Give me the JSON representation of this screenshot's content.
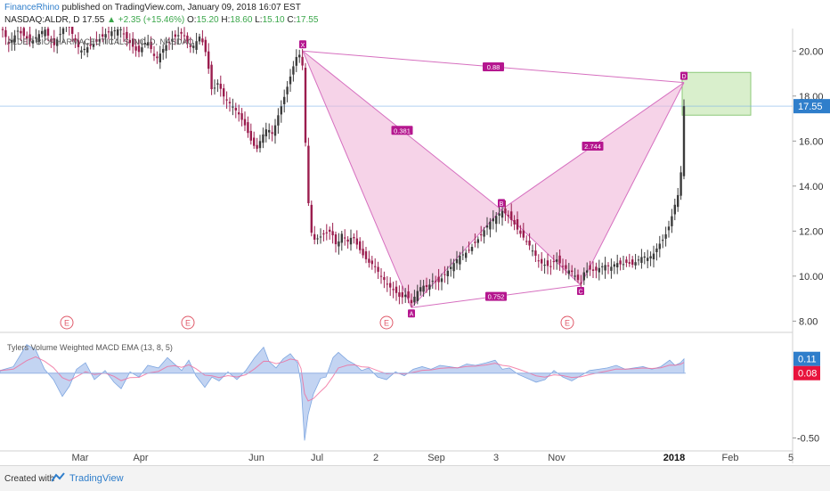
{
  "header": {
    "publisher": "FinanceRhino",
    "published_text": "published on TradingView.com, January 09, 2018 16:07 EST",
    "symbol_line": "NASDAQ:ALDR, D",
    "price": "17.55",
    "change_arrow": "▲",
    "change": "+2.35 (+15.46%)",
    "o_label": "O:",
    "o_value": "15.20",
    "h_label": "H:",
    "h_value": "18.60",
    "l_label": "L:",
    "l_value": "15.10",
    "c_label": "C:",
    "c_value": "17.55"
  },
  "footer": {
    "created_with": "Created with",
    "tradingview": "TradingView"
  },
  "colors": {
    "up_candle": "#3b3b3b",
    "down_candle": "#9b1d4e",
    "pattern_fill": "#f0b6d9",
    "pattern_line": "#d66fbf",
    "pattern_label_bg": "#b5178f",
    "target_box": "#c9e8b6",
    "macd_fill": "#b8cdf0",
    "signal_line": "#f06a9a",
    "price_badge": "#2f7ecb",
    "macd_badge": "#2f7ecb",
    "signal_badge": "#e8123c",
    "earnings": "#e05a6a"
  },
  "chart_data": {
    "type": "candlestick",
    "title": "ALDER BIOPHARMACEUTICALS INC, D, NASDAQ",
    "y_axis": {
      "min": 7.5,
      "max": 21,
      "ticks": [
        "20.00",
        "18.00",
        "16.00",
        "14.00",
        "12.00",
        "10.00",
        "8.00"
      ]
    },
    "x_ticks": [
      "Mar",
      "Apr",
      "Jun",
      "Jul",
      "2",
      "Sep",
      "3",
      "Nov",
      "2018",
      "Feb",
      "5"
    ],
    "last_price": "17.55",
    "price_path": [
      [
        0,
        21.2
      ],
      [
        10,
        20.3
      ],
      [
        20,
        20.9
      ],
      [
        35,
        20.4
      ],
      [
        50,
        21.0
      ],
      [
        60,
        20.2
      ],
      [
        75,
        21.3
      ],
      [
        90,
        20.0
      ],
      [
        105,
        20.3
      ],
      [
        120,
        20.8
      ],
      [
        135,
        21.0
      ],
      [
        145,
        20.4
      ],
      [
        155,
        19.9
      ],
      [
        165,
        20.5
      ],
      [
        175,
        19.6
      ],
      [
        185,
        20.2
      ],
      [
        195,
        20.6
      ],
      [
        205,
        20.8
      ],
      [
        215,
        20.1
      ],
      [
        225,
        20.7
      ],
      [
        232,
        19.8
      ],
      [
        238,
        18.2
      ],
      [
        245,
        18.6
      ],
      [
        252,
        17.9
      ],
      [
        260,
        17.6
      ],
      [
        268,
        17.2
      ],
      [
        275,
        16.7
      ],
      [
        282,
        16.0
      ],
      [
        288,
        15.6
      ],
      [
        294,
        16.2
      ],
      [
        300,
        16.6
      ],
      [
        306,
        16.3
      ],
      [
        312,
        17.1
      ],
      [
        318,
        17.8
      ],
      [
        324,
        18.6
      ],
      [
        330,
        19.4
      ],
      [
        335,
        20.0
      ],
      [
        340,
        19.3
      ],
      [
        344,
        14.8
      ],
      [
        348,
        12.2
      ],
      [
        352,
        11.6
      ],
      [
        358,
        11.7
      ],
      [
        365,
        11.9
      ],
      [
        372,
        12.0
      ],
      [
        378,
        11.3
      ],
      [
        384,
        11.9
      ],
      [
        390,
        11.5
      ],
      [
        396,
        11.8
      ],
      [
        402,
        11.3
      ],
      [
        408,
        10.9
      ],
      [
        414,
        10.6
      ],
      [
        420,
        10.5
      ],
      [
        426,
        10.1
      ],
      [
        432,
        9.8
      ],
      [
        438,
        9.5
      ],
      [
        444,
        9.3
      ],
      [
        450,
        9.0
      ],
      [
        456,
        9.2
      ],
      [
        462,
        8.8
      ],
      [
        468,
        9.3
      ],
      [
        474,
        9.6
      ],
      [
        480,
        9.5
      ],
      [
        486,
        9.8
      ],
      [
        492,
        9.7
      ],
      [
        498,
        10.0
      ],
      [
        504,
        10.3
      ],
      [
        510,
        10.6
      ],
      [
        516,
        10.9
      ],
      [
        522,
        11.0
      ],
      [
        528,
        11.2
      ],
      [
        534,
        11.5
      ],
      [
        540,
        11.8
      ],
      [
        546,
        12.2
      ],
      [
        552,
        12.5
      ],
      [
        558,
        12.7
      ],
      [
        564,
        12.9
      ],
      [
        570,
        12.7
      ],
      [
        576,
        12.4
      ],
      [
        582,
        12.0
      ],
      [
        588,
        11.7
      ],
      [
        594,
        11.4
      ],
      [
        600,
        11.0
      ],
      [
        606,
        10.6
      ],
      [
        612,
        10.5
      ],
      [
        618,
        10.4
      ],
      [
        624,
        10.8
      ],
      [
        630,
        10.5
      ],
      [
        636,
        10.3
      ],
      [
        642,
        10.2
      ],
      [
        648,
        9.9
      ],
      [
        652,
        9.6
      ],
      [
        656,
        10.2
      ],
      [
        662,
        10.3
      ],
      [
        668,
        10.2
      ],
      [
        674,
        10.4
      ],
      [
        680,
        10.5
      ],
      [
        686,
        10.4
      ],
      [
        692,
        10.6
      ],
      [
        698,
        10.5
      ],
      [
        704,
        10.6
      ],
      [
        710,
        10.5
      ],
      [
        716,
        10.7
      ],
      [
        722,
        10.9
      ],
      [
        728,
        10.8
      ],
      [
        734,
        11.0
      ],
      [
        740,
        11.4
      ],
      [
        746,
        11.7
      ],
      [
        752,
        12.3
      ],
      [
        758,
        13.2
      ],
      [
        762,
        13.7
      ],
      [
        766,
        15.1
      ],
      [
        768,
        17.55
      ]
    ],
    "harmonic_pattern": {
      "points": [
        {
          "name": "X",
          "price": 20.0
        },
        {
          "name": "A",
          "price": 8.6
        },
        {
          "name": "B",
          "price": 12.95
        },
        {
          "name": "C",
          "price": 9.6
        },
        {
          "name": "D",
          "price": 18.6
        }
      ],
      "ratios": {
        "XB": "0.381",
        "AC": "0.752",
        "BD": "2.744",
        "XD": "0.88"
      }
    },
    "earnings_markers": [
      "E",
      "E",
      "E",
      "E"
    ],
    "indicator": {
      "name": "Tylers Volume Weighted MACD EMA (13, 8, 5)",
      "y_ticks": [
        "-0.50"
      ],
      "macd_value": "0.11",
      "signal_value": "0.08",
      "macd_path": [
        [
          0,
          0.02
        ],
        [
          15,
          0.05
        ],
        [
          30,
          0.22
        ],
        [
          40,
          0.18
        ],
        [
          50,
          0.03
        ],
        [
          60,
          -0.05
        ],
        [
          70,
          -0.18
        ],
        [
          78,
          -0.1
        ],
        [
          86,
          0.03
        ],
        [
          96,
          0.08
        ],
        [
          106,
          -0.05
        ],
        [
          118,
          0.02
        ],
        [
          128,
          -0.07
        ],
        [
          136,
          -0.12
        ],
        [
          146,
          0.01
        ],
        [
          156,
          -0.03
        ],
        [
          166,
          0.06
        ],
        [
          178,
          0.04
        ],
        [
          188,
          0.12
        ],
        [
          196,
          0.07
        ],
        [
          204,
          0.02
        ],
        [
          212,
          0.1
        ],
        [
          220,
          -0.02
        ],
        [
          230,
          -0.11
        ],
        [
          238,
          -0.03
        ],
        [
          246,
          -0.06
        ],
        [
          256,
          0.01
        ],
        [
          266,
          -0.05
        ],
        [
          276,
          0.02
        ],
        [
          286,
          0.12
        ],
        [
          296,
          0.2
        ],
        [
          302,
          0.09
        ],
        [
          310,
          0.04
        ],
        [
          318,
          0.11
        ],
        [
          326,
          0.15
        ],
        [
          334,
          0.08
        ],
        [
          338,
          -0.08
        ],
        [
          342,
          -0.52
        ],
        [
          346,
          -0.32
        ],
        [
          352,
          -0.16
        ],
        [
          360,
          -0.04
        ],
        [
          366,
          -0.03
        ],
        [
          374,
          0.12
        ],
        [
          380,
          0.16
        ],
        [
          390,
          0.1
        ],
        [
          398,
          0.07
        ],
        [
          406,
          0.02
        ],
        [
          414,
          0.04
        ],
        [
          424,
          -0.03
        ],
        [
          434,
          -0.05
        ],
        [
          444,
          0.01
        ],
        [
          454,
          -0.02
        ],
        [
          464,
          0.03
        ],
        [
          474,
          0.05
        ],
        [
          484,
          0.03
        ],
        [
          494,
          0.06
        ],
        [
          504,
          0.05
        ],
        [
          514,
          0.04
        ],
        [
          524,
          0.07
        ],
        [
          534,
          0.06
        ],
        [
          546,
          0.08
        ],
        [
          556,
          0.1
        ],
        [
          564,
          0.03
        ],
        [
          572,
          0.04
        ],
        [
          582,
          -0.01
        ],
        [
          592,
          -0.04
        ],
        [
          602,
          -0.07
        ],
        [
          612,
          -0.05
        ],
        [
          622,
          0.02
        ],
        [
          632,
          -0.03
        ],
        [
          642,
          -0.06
        ],
        [
          652,
          -0.02
        ],
        [
          662,
          0.02
        ],
        [
          672,
          0.03
        ],
        [
          682,
          0.04
        ],
        [
          692,
          0.06
        ],
        [
          702,
          0.03
        ],
        [
          712,
          0.04
        ],
        [
          722,
          0.05
        ],
        [
          732,
          0.03
        ],
        [
          742,
          0.05
        ],
        [
          752,
          0.1
        ],
        [
          758,
          0.06
        ],
        [
          764,
          0.08
        ],
        [
          768,
          0.11
        ]
      ]
    }
  }
}
